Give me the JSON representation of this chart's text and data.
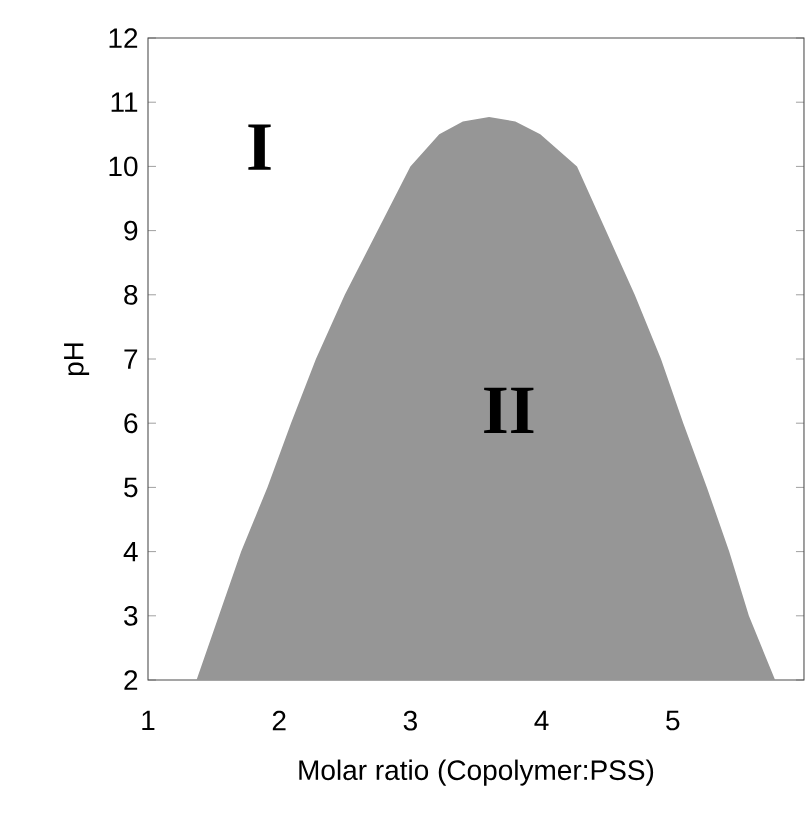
{
  "chart_data": {
    "type": "area",
    "xlabel": "Molar ratio (Copolymer:PSS)",
    "ylabel": "pH",
    "x": [
      1.37,
      1.54,
      1.71,
      1.91,
      2.09,
      2.28,
      2.5,
      2.75,
      3.0,
      3.22,
      3.4,
      3.6,
      3.8,
      3.99,
      4.27,
      4.49,
      4.71,
      4.91,
      5.08,
      5.26,
      5.43,
      5.58,
      5.78
    ],
    "series": [
      {
        "color": "#969696",
        "values": [
          2,
          3,
          4,
          5,
          6,
          7,
          8,
          9,
          10,
          10.5,
          10.7,
          10.77,
          10.7,
          10.5,
          10,
          9,
          8,
          7,
          6,
          5,
          4,
          3,
          2
        ]
      }
    ],
    "xlim": [
      1,
      6
    ],
    "xticks": [
      1,
      2,
      3,
      4,
      5
    ],
    "ylim": [
      2,
      12
    ],
    "yticks": [
      2,
      3,
      4,
      5,
      6,
      7,
      8,
      9,
      10,
      11,
      12
    ],
    "annotations": [
      "I",
      "II"
    ]
  }
}
